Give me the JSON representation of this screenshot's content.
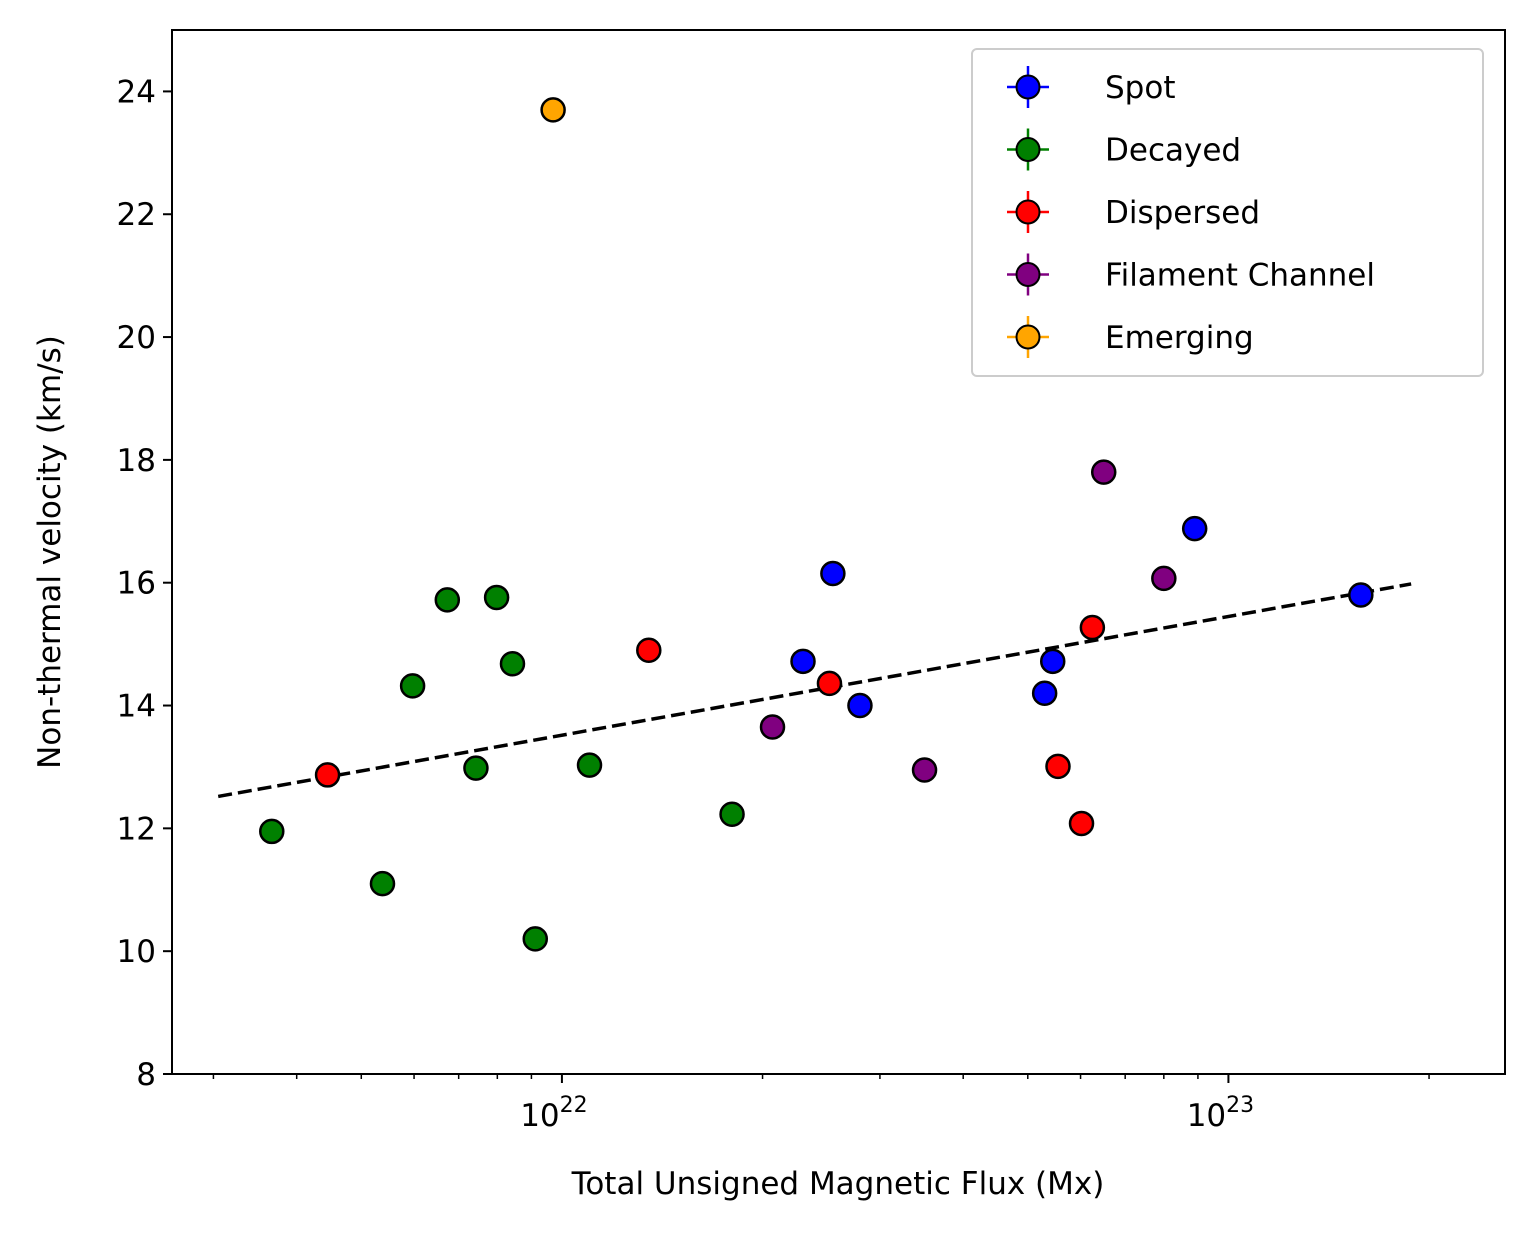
{
  "chart_data": {
    "type": "scatter",
    "title": "",
    "xlabel": "Total Unsigned Magnetic Flux (Mx)",
    "ylabel": "Non-thermal velocity (km/s)",
    "xscale": "log",
    "xlim": [
      2.6e+21,
      2.6e+23
    ],
    "ylim": [
      8,
      25
    ],
    "x_major_ticks": [
      1e+22,
      1e+23
    ],
    "x_tick_labels": [
      {
        "base": "10",
        "exp": "22"
      },
      {
        "base": "10",
        "exp": "23"
      }
    ],
    "y_ticks": [
      8,
      10,
      12,
      14,
      16,
      18,
      20,
      22,
      24
    ],
    "y_tick_labels": [
      "8",
      "10",
      "12",
      "14",
      "16",
      "18",
      "20",
      "22",
      "24"
    ],
    "legend_position": "top-right",
    "series": [
      {
        "name": "Spot",
        "color": "#0000ff",
        "points": [
          [
            2.3e+22,
            14.72
          ],
          [
            2.55e+22,
            16.15
          ],
          [
            2.8e+22,
            14.0
          ],
          [
            5.3e+22,
            14.2
          ],
          [
            5.45e+22,
            14.72
          ],
          [
            8.9e+22,
            16.88
          ],
          [
            1.58e+23,
            15.8
          ]
        ]
      },
      {
        "name": "Decayed",
        "color": "#008000",
        "points": [
          [
            3.67e+21,
            11.95
          ],
          [
            5.38e+21,
            11.1
          ],
          [
            5.97e+21,
            14.32
          ],
          [
            6.73e+21,
            15.72
          ],
          [
            7.43e+21,
            12.98
          ],
          [
            7.98e+21,
            15.76
          ],
          [
            8.43e+21,
            14.68
          ],
          [
            9.12e+21,
            10.2
          ],
          [
            1.1e+22,
            13.03
          ],
          [
            1.8e+22,
            12.23
          ]
        ]
      },
      {
        "name": "Dispersed",
        "color": "#ff0000",
        "points": [
          [
            4.45e+21,
            12.87
          ],
          [
            1.35e+22,
            14.9
          ],
          [
            2.52e+22,
            14.36
          ],
          [
            5.55e+22,
            13.01
          ],
          [
            6.02e+22,
            12.08
          ],
          [
            6.25e+22,
            15.27
          ]
        ]
      },
      {
        "name": "Filament Channel",
        "color": "#800080",
        "points": [
          [
            2.07e+22,
            13.65
          ],
          [
            3.5e+22,
            12.95
          ],
          [
            6.5e+22,
            17.8
          ],
          [
            8e+22,
            16.07
          ]
        ]
      },
      {
        "name": "Emerging",
        "color": "#ffa500",
        "points": [
          [
            9.7e+21,
            23.7
          ]
        ]
      }
    ],
    "fit_line": {
      "style": "dashed",
      "color": "#000000",
      "x": [
        3.05e+21,
        1.88e+23
      ],
      "y": [
        12.52,
        15.98
      ]
    }
  }
}
